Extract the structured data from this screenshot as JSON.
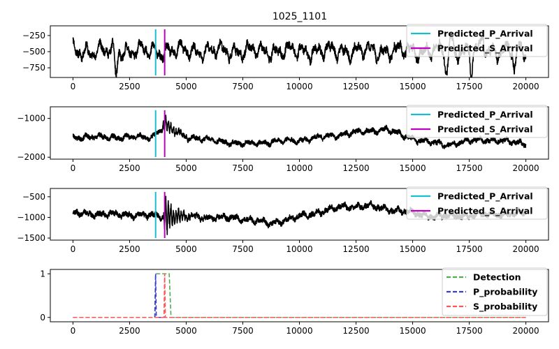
{
  "chart_data": {
    "title": "1025_1101",
    "x_ticks": [
      0,
      2500,
      5000,
      7500,
      10000,
      12500,
      15000,
      17500,
      20000
    ],
    "xlim": [
      -1000,
      21000
    ],
    "p_arrival": 3650,
    "s_arrival": 4050,
    "colors": {
      "trace": "#000000",
      "p_line": "#17becf",
      "s_line": "#bf00bf",
      "detection": "#4daf4a",
      "p_prob": "#3b3bd1",
      "s_prob": "#ff5555",
      "legend_border": "#cccccc"
    },
    "panels": [
      {
        "type": "line",
        "ylim": [
          -900,
          -100
        ],
        "y_ticks": [
          -250,
          -500,
          -750
        ],
        "baseline": -490,
        "amp": 140,
        "noise": 55,
        "seed": 11,
        "bursts": [],
        "lows": [
          {
            "x": 1900,
            "v": -860
          },
          {
            "x": 16500,
            "v": -880
          },
          {
            "x": 17600,
            "v": -820
          },
          {
            "x": 19500,
            "v": -830
          }
        ],
        "highs": [
          {
            "x": 16700,
            "v": -240
          },
          {
            "x": 18100,
            "v": -230
          }
        ],
        "legend": [
          "Predicted_P_Arrival",
          "Predicted_S_Arrival"
        ]
      },
      {
        "type": "line",
        "ylim": [
          -2050,
          -700
        ],
        "y_ticks": [
          -1000,
          -2000
        ],
        "baseline": -1480,
        "amp": 70,
        "noise": 55,
        "seed": 23,
        "bursts": [
          {
            "x": 4000,
            "amp": 260,
            "width": 450
          }
        ],
        "drift": [
          {
            "x": 0,
            "v": 0
          },
          {
            "x": 3500,
            "v": 0
          },
          {
            "x": 4050,
            "v": 300
          },
          {
            "x": 5000,
            "v": 0
          },
          {
            "x": 7500,
            "v": -180
          },
          {
            "x": 10000,
            "v": -80
          },
          {
            "x": 12500,
            "v": 120
          },
          {
            "x": 13800,
            "v": 200
          },
          {
            "x": 15200,
            "v": -80
          },
          {
            "x": 16500,
            "v": -200
          },
          {
            "x": 18000,
            "v": -60
          },
          {
            "x": 20000,
            "v": -160
          }
        ],
        "lows": [],
        "highs": [],
        "legend": [
          "Predicted_P_Arrival",
          "Predicted_S_Arrival"
        ]
      },
      {
        "type": "line",
        "ylim": [
          -1550,
          -300
        ],
        "y_ticks": [
          -500,
          -1000,
          -1500
        ],
        "baseline": -900,
        "amp": 70,
        "noise": 60,
        "seed": 37,
        "bursts": [
          {
            "x": 4050,
            "amp": 500,
            "width": 500
          }
        ],
        "drift": [
          {
            "x": 0,
            "v": 0
          },
          {
            "x": 7500,
            "v": -120
          },
          {
            "x": 8700,
            "v": -250
          },
          {
            "x": 11800,
            "v": 150
          },
          {
            "x": 13000,
            "v": 180
          },
          {
            "x": 16000,
            "v": -80
          },
          {
            "x": 20000,
            "v": 0
          }
        ],
        "lows": [],
        "highs": [],
        "legend": [
          "Predicted_P_Arrival",
          "Predicted_S_Arrival"
        ]
      },
      {
        "type": "prob",
        "ylim": [
          -0.1,
          1.1
        ],
        "y_ticks": [
          0,
          1
        ],
        "detection": {
          "start": 3650,
          "end": 4250,
          "rise": 40
        },
        "p_probability": {
          "peak": 3650,
          "width": 30
        },
        "s_probability": {
          "peak": 4050,
          "width": 30
        },
        "x_end": 20000,
        "legend": [
          "Detection",
          "P_probability",
          "S_probability"
        ]
      }
    ]
  }
}
